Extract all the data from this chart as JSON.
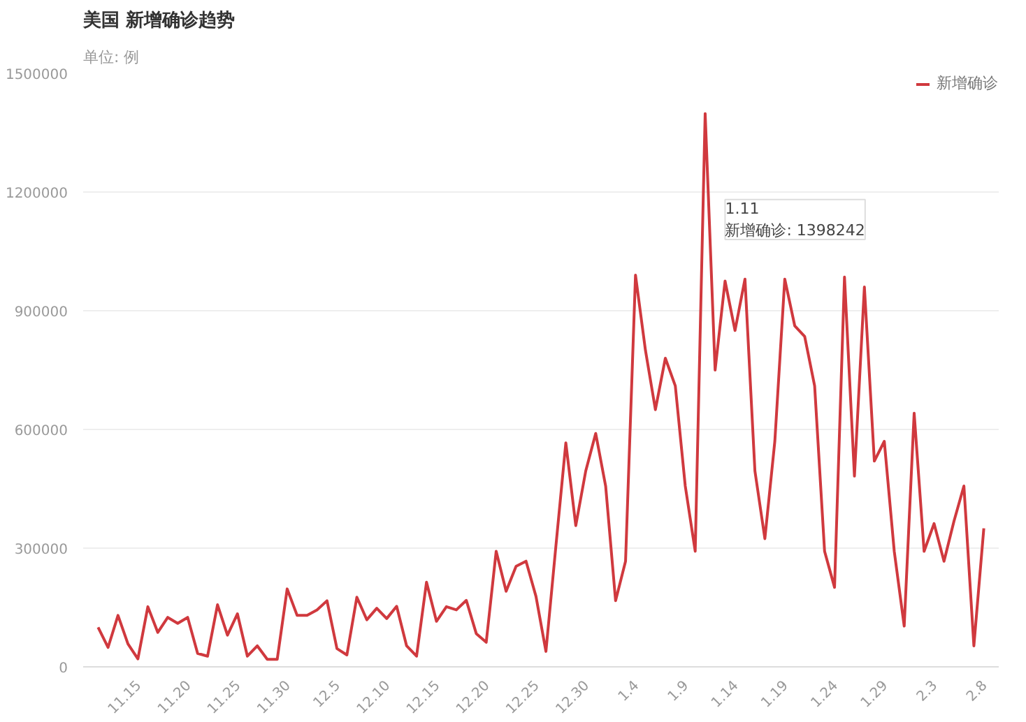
{
  "chart_data": {
    "type": "line",
    "title": "美国 新增确诊趋势",
    "subtitle": "单位: 例",
    "categories": [
      null,
      null,
      null,
      null,
      "11.15",
      null,
      null,
      null,
      null,
      "11.20",
      null,
      null,
      null,
      null,
      "11.25",
      null,
      null,
      null,
      null,
      "11.30",
      null,
      null,
      null,
      null,
      "12.5",
      null,
      null,
      null,
      null,
      "12.10",
      null,
      null,
      null,
      null,
      "12.15",
      null,
      null,
      null,
      null,
      "12.20",
      null,
      null,
      null,
      null,
      "12.25",
      null,
      null,
      null,
      null,
      "12.30",
      null,
      null,
      null,
      null,
      "1.4",
      null,
      null,
      null,
      null,
      "1.9",
      null,
      null,
      null,
      null,
      "1.14",
      null,
      null,
      null,
      null,
      "1.19",
      null,
      null,
      null,
      null,
      "1.24",
      null,
      null,
      null,
      null,
      "1.29",
      null,
      null,
      null,
      null,
      "2.3",
      null,
      null,
      null,
      null,
      "2.8"
    ],
    "series": [
      {
        "name": "新增确诊",
        "color": "#d0393e",
        "values": [
          100000,
          49000,
          130000,
          58000,
          20000,
          152000,
          87000,
          125000,
          110000,
          125000,
          34000,
          27000,
          157000,
          80000,
          134000,
          27000,
          53000,
          19000,
          19000,
          197000,
          130000,
          130000,
          144000,
          167000,
          46000,
          30000,
          176000,
          119000,
          148000,
          122000,
          153000,
          53000,
          27000,
          214000,
          115000,
          152000,
          144000,
          168000,
          84000,
          62000,
          292000,
          191000,
          254000,
          267000,
          178000,
          39000,
          305000,
          566000,
          357000,
          495000,
          590000,
          457000,
          167000,
          267000,
          990000,
          800000,
          650000,
          780000,
          710000,
          457000,
          292000,
          1398242,
          750000,
          975000,
          850000,
          980000,
          495000,
          324000,
          570000,
          980000,
          862000,
          835000,
          710000,
          292000,
          201000,
          985000,
          482000,
          960000,
          520000,
          570000,
          292000,
          103000,
          641000,
          292000,
          362000,
          267000,
          368000,
          457000,
          53000,
          350000
        ]
      }
    ],
    "ylim": [
      0,
      1500000
    ],
    "yticks": [
      0,
      300000,
      600000,
      900000,
      1200000,
      1500000
    ],
    "grid": "y",
    "legend": "top right",
    "marker": "none",
    "line_style": "solid",
    "annotations": [
      "1.11\n新增确诊: 1398242"
    ]
  }
}
